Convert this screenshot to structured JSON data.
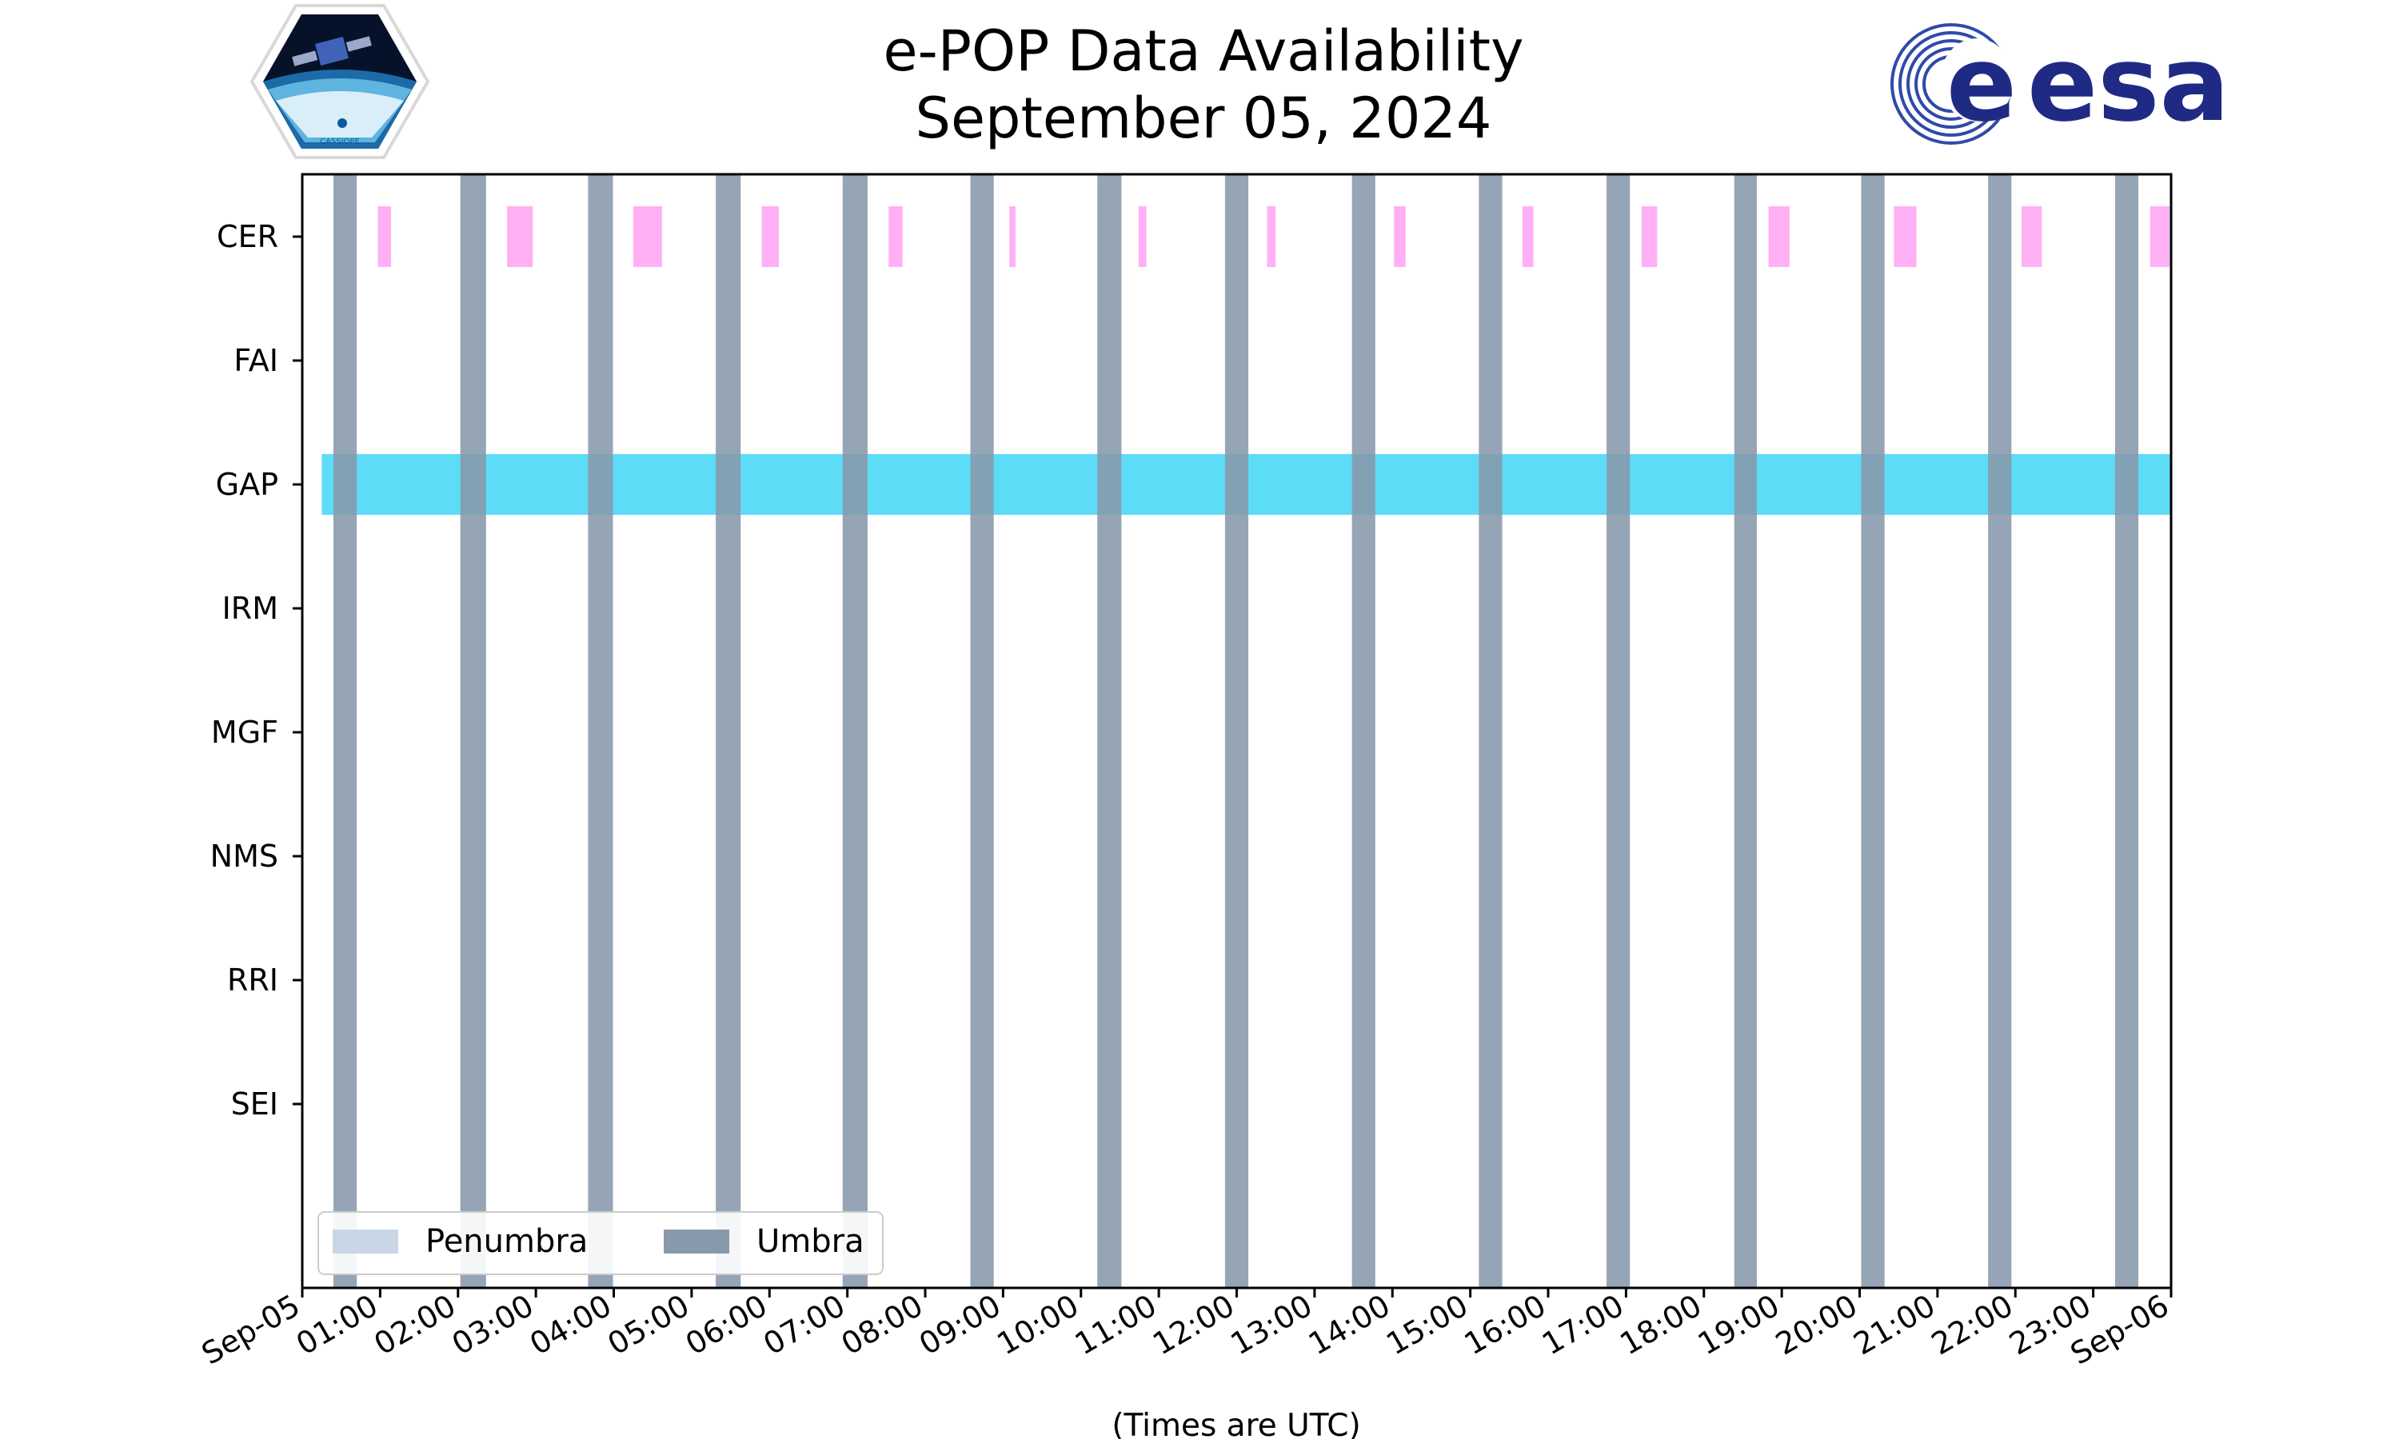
{
  "title_line1": "e-POP Data Availability",
  "title_line2": "September 05, 2024",
  "logos": {
    "left": {
      "name": "CASSIOPE",
      "text": "CASSIOPE"
    },
    "right": {
      "name": "esa",
      "text": "esa"
    }
  },
  "colors": {
    "umbra": "#8899ab",
    "penumbra": "#c8d6e6",
    "cer": "#ffb0f5",
    "gap": "#5ddcf8",
    "axis": "#000000"
  },
  "chart_data": {
    "type": "timeline",
    "title": "e-POP Data Availability September 05, 2024",
    "xlabel": "(Times are UTC)",
    "x_ticks": [
      "Sep-05",
      "01:00",
      "02:00",
      "03:00",
      "04:00",
      "05:00",
      "06:00",
      "07:00",
      "08:00",
      "09:00",
      "10:00",
      "11:00",
      "12:00",
      "13:00",
      "14:00",
      "15:00",
      "16:00",
      "17:00",
      "18:00",
      "19:00",
      "20:00",
      "21:00",
      "22:00",
      "23:00",
      "Sep-06"
    ],
    "xlim_hours": [
      0,
      24
    ],
    "instruments": [
      "CER",
      "FAI",
      "GAP",
      "IRM",
      "MGF",
      "NMS",
      "RRI",
      "SEI"
    ],
    "umbra_intervals_hours": [
      [
        0.4,
        0.7
      ],
      [
        2.03,
        2.36
      ],
      [
        3.67,
        3.99
      ],
      [
        5.31,
        5.63
      ],
      [
        6.94,
        7.26
      ],
      [
        8.58,
        8.88
      ],
      [
        10.21,
        10.52
      ],
      [
        11.85,
        12.15
      ],
      [
        13.48,
        13.78
      ],
      [
        15.11,
        15.41
      ],
      [
        16.75,
        17.05
      ],
      [
        18.39,
        18.68
      ],
      [
        20.02,
        20.32
      ],
      [
        21.65,
        21.95
      ],
      [
        23.28,
        23.58
      ]
    ],
    "penumbra_intervals_hours": [],
    "data_intervals_hours": {
      "CER": [
        [
          0.97,
          1.14
        ],
        [
          2.63,
          2.96
        ],
        [
          4.25,
          4.62
        ],
        [
          5.9,
          6.12
        ],
        [
          7.53,
          7.71
        ],
        [
          9.08,
          9.16
        ],
        [
          10.74,
          10.84
        ],
        [
          12.39,
          12.5
        ],
        [
          14.02,
          14.17
        ],
        [
          15.67,
          15.81
        ],
        [
          17.2,
          17.4
        ],
        [
          18.83,
          19.1
        ],
        [
          20.44,
          20.73
        ],
        [
          22.08,
          22.34
        ],
        [
          23.73,
          23.98
        ]
      ],
      "FAI": [],
      "GAP": [
        [
          0.25,
          24.0
        ]
      ],
      "IRM": [],
      "MGF": [],
      "NMS": [],
      "RRI": [],
      "SEI": []
    },
    "legend": {
      "placement": "lower-left",
      "entries": [
        {
          "label": "Penumbra",
          "color": "#c8d6e6"
        },
        {
          "label": "Umbra",
          "color": "#8899ab"
        }
      ]
    }
  }
}
